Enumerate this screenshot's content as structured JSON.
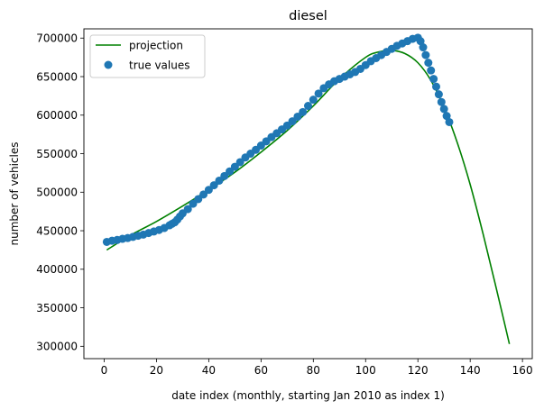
{
  "chart_data": {
    "type": "line+scatter",
    "title": "diesel",
    "xlabel": "date index (monthly, starting Jan 2010 as index 1)",
    "ylabel": "number of vehicles",
    "xlim": [
      -7.75,
      163.75
    ],
    "ylim": [
      284000,
      712000
    ],
    "x_ticks": [
      0,
      20,
      40,
      60,
      80,
      100,
      120,
      140,
      160
    ],
    "y_ticks": [
      300000,
      350000,
      400000,
      450000,
      500000,
      550000,
      600000,
      650000,
      700000
    ],
    "x_tick_labels": [
      "0",
      "20",
      "40",
      "60",
      "80",
      "100",
      "120",
      "140",
      "160"
    ],
    "y_tick_labels": [
      "300000",
      "350000",
      "400000",
      "450000",
      "500000",
      "550000",
      "600000",
      "650000",
      "700000"
    ],
    "grid": false,
    "legend_position": "top-left",
    "colors": {
      "projection": "#008000",
      "true_values": "#1f77b4"
    },
    "legend": [
      {
        "name": "projection",
        "marker": "line"
      },
      {
        "name": "true values",
        "marker": "dot"
      }
    ],
    "series": [
      {
        "name": "projection",
        "kind": "line",
        "x": [
          1,
          10,
          20,
          30,
          40,
          50,
          60,
          70,
          80,
          90,
          100,
          105,
          110,
          115,
          120,
          125,
          130,
          135,
          140,
          145,
          150,
          155
        ],
        "y": [
          425000,
          444000,
          462000,
          482000,
          503000,
          526000,
          552000,
          580000,
          612000,
          647000,
          675000,
          682000,
          684000,
          680000,
          668000,
          645000,
          610000,
          565000,
          510000,
          445000,
          375000,
          303000
        ]
      },
      {
        "name": "true values",
        "kind": "scatter",
        "points": [
          [
            1,
            435500
          ],
          [
            3,
            437000
          ],
          [
            5,
            438000
          ],
          [
            7,
            439500
          ],
          [
            9,
            440500
          ],
          [
            11,
            442000
          ],
          [
            13,
            443500
          ],
          [
            15,
            445000
          ],
          [
            17,
            447000
          ],
          [
            19,
            449000
          ],
          [
            21,
            451000
          ],
          [
            23,
            453500
          ],
          [
            25,
            457000
          ],
          [
            26,
            459000
          ],
          [
            27,
            461000
          ],
          [
            28,
            464500
          ],
          [
            29,
            468500
          ],
          [
            30,
            472500
          ],
          [
            32,
            478000
          ],
          [
            34,
            485000
          ],
          [
            36,
            491000
          ],
          [
            38,
            497000
          ],
          [
            40,
            503000
          ],
          [
            42,
            509000
          ],
          [
            44,
            515000
          ],
          [
            46,
            521000
          ],
          [
            48,
            527000
          ],
          [
            50,
            533000
          ],
          [
            52,
            539000
          ],
          [
            54,
            545000
          ],
          [
            56,
            550000
          ],
          [
            58,
            555000
          ],
          [
            60,
            560500
          ],
          [
            62,
            566000
          ],
          [
            64,
            571500
          ],
          [
            66,
            576500
          ],
          [
            68,
            581500
          ],
          [
            70,
            586500
          ],
          [
            72,
            592000
          ],
          [
            74,
            598000
          ],
          [
            76,
            604000
          ],
          [
            78,
            612000
          ],
          [
            80,
            620000
          ],
          [
            82,
            628000
          ],
          [
            84,
            635000
          ],
          [
            86,
            640000
          ],
          [
            88,
            644000
          ],
          [
            90,
            647000
          ],
          [
            92,
            650000
          ],
          [
            94,
            653000
          ],
          [
            96,
            656000
          ],
          [
            98,
            660000
          ],
          [
            100,
            665000
          ],
          [
            102,
            670000
          ],
          [
            104,
            674000
          ],
          [
            106,
            678000
          ],
          [
            108,
            682000
          ],
          [
            110,
            686000
          ],
          [
            112,
            690000
          ],
          [
            114,
            693000
          ],
          [
            116,
            696000
          ],
          [
            118,
            699000
          ],
          [
            120,
            700500
          ],
          [
            121,
            696000
          ],
          [
            122,
            688000
          ],
          [
            123,
            678000
          ],
          [
            124,
            668000
          ],
          [
            125,
            658000
          ],
          [
            126,
            647000
          ],
          [
            127,
            637000
          ],
          [
            128,
            627000
          ],
          [
            129,
            617000
          ],
          [
            130,
            608000
          ],
          [
            131,
            599000
          ],
          [
            132,
            591000
          ]
        ]
      }
    ]
  }
}
